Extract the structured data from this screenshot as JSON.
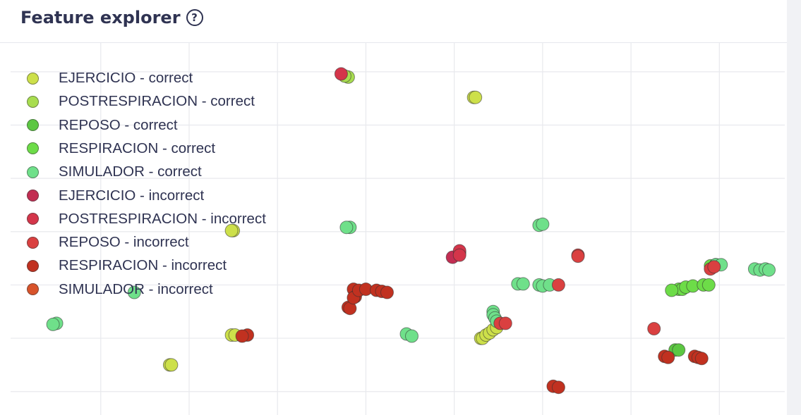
{
  "header": {
    "title": "Feature explorer",
    "help_icon": "question-circle-icon"
  },
  "colors": {
    "EJERCICIO - correct": "#cde04a",
    "POSTRESPIRACION - correct": "#a8dd4f",
    "REPOSO - correct": "#5cc742",
    "RESPIRACION - correct": "#6ddc48",
    "SIMULADOR - correct": "#6fe08a",
    "EJERCICIO - incorrect": "#c22d52",
    "POSTRESPIRACION - incorrect": "#d4354a",
    "REPOSO - incorrect": "#da4040",
    "RESPIRACION - incorrect": "#c13120",
    "SIMULADOR - incorrect": "#d8532a"
  },
  "chart_data": {
    "type": "scatter",
    "title": "",
    "xlabel": "",
    "ylabel": "",
    "xlim": [
      -2.07,
      2.37
    ],
    "ylim": [
      -1.22,
      2.27
    ],
    "grid": true,
    "legend_position": "top-left",
    "series": [
      {
        "name": "EJERCICIO - correct",
        "points": [
          [
            -1.11,
            -0.75
          ],
          [
            -1.1,
            -0.75
          ],
          [
            -0.76,
            -0.47
          ],
          [
            -0.74,
            -0.47
          ],
          [
            -0.75,
            0.51
          ],
          [
            -0.76,
            0.51
          ],
          [
            0.61,
            1.76
          ],
          [
            0.62,
            1.76
          ],
          [
            0.65,
            -0.5
          ],
          [
            0.66,
            -0.5
          ],
          [
            0.68,
            -0.47
          ],
          [
            0.7,
            -0.45
          ],
          [
            0.72,
            -0.42
          ],
          [
            0.74,
            -0.4
          ]
        ]
      },
      {
        "name": "POSTRESPIRACION - correct",
        "points": [
          [
            0.53,
            0.3
          ],
          [
            -0.1,
            1.95
          ],
          [
            -0.12,
            1.96
          ]
        ]
      },
      {
        "name": "REPOSO - correct",
        "points": [
          [
            1.75,
            -0.61
          ],
          [
            1.77,
            -0.61
          ]
        ]
      },
      {
        "name": "RESPIRACION - correct",
        "points": [
          [
            1.77,
            -0.04
          ],
          [
            1.79,
            -0.04
          ],
          [
            1.81,
            -0.02
          ],
          [
            1.85,
            -0.01
          ],
          [
            1.91,
            0.0
          ],
          [
            1.94,
            0.0
          ],
          [
            1.73,
            -0.05
          ],
          [
            1.95,
            0.18
          ],
          [
            1.98,
            0.19
          ]
        ]
      },
      {
        "name": "SIMULADOR - correct",
        "points": [
          [
            -1.75,
            -0.36
          ],
          [
            -1.77,
            -0.37
          ],
          [
            -1.31,
            -0.07
          ],
          [
            -0.09,
            0.54
          ],
          [
            -0.11,
            0.54
          ],
          [
            0.23,
            -0.46
          ],
          [
            0.26,
            -0.48
          ],
          [
            0.72,
            -0.25
          ],
          [
            0.72,
            -0.28
          ],
          [
            0.73,
            -0.31
          ],
          [
            0.74,
            -0.34
          ],
          [
            0.86,
            0.01
          ],
          [
            0.89,
            0.01
          ],
          [
            0.98,
            0.0
          ],
          [
            1.0,
            -0.01
          ],
          [
            1.04,
            0.0
          ],
          [
            0.98,
            0.56
          ],
          [
            1.0,
            0.57
          ],
          [
            2.2,
            0.15
          ],
          [
            2.23,
            0.14
          ],
          [
            2.26,
            0.15
          ],
          [
            2.28,
            0.14
          ],
          [
            1.98,
            0.19
          ],
          [
            2.01,
            0.19
          ]
        ]
      },
      {
        "name": "EJERCICIO - incorrect",
        "points": [
          [
            0.49,
            0.26
          ]
        ]
      },
      {
        "name": "POSTRESPIRACION - incorrect",
        "points": [
          [
            -0.14,
            1.98
          ],
          [
            0.53,
            0.32
          ],
          [
            0.53,
            0.28
          ]
        ]
      },
      {
        "name": "REPOSO - incorrect",
        "points": [
          [
            0.76,
            -0.36
          ],
          [
            0.79,
            -0.36
          ],
          [
            1.09,
            0.0
          ],
          [
            1.2,
            0.28
          ],
          [
            1.2,
            0.27
          ],
          [
            1.63,
            -0.41
          ],
          [
            1.95,
            0.15
          ],
          [
            1.97,
            0.17
          ]
        ]
      },
      {
        "name": "RESPIRACION - incorrect",
        "points": [
          [
            -0.67,
            -0.47
          ],
          [
            -0.7,
            -0.48
          ],
          [
            -0.1,
            -0.21
          ],
          [
            -0.09,
            -0.22
          ],
          [
            -0.07,
            -0.04
          ],
          [
            -0.06,
            -0.11
          ],
          [
            -0.07,
            -0.12
          ],
          [
            -0.04,
            -0.05
          ],
          [
            0.0,
            -0.04
          ],
          [
            0.06,
            -0.05
          ],
          [
            0.09,
            -0.06
          ],
          [
            0.12,
            -0.07
          ],
          [
            1.06,
            -0.95
          ],
          [
            1.09,
            -0.96
          ],
          [
            1.69,
            -0.67
          ],
          [
            1.71,
            -0.68
          ],
          [
            1.86,
            -0.67
          ],
          [
            1.88,
            -0.68
          ],
          [
            1.9,
            -0.69
          ]
        ]
      },
      {
        "name": "SIMULADOR - incorrect",
        "points": []
      }
    ]
  }
}
